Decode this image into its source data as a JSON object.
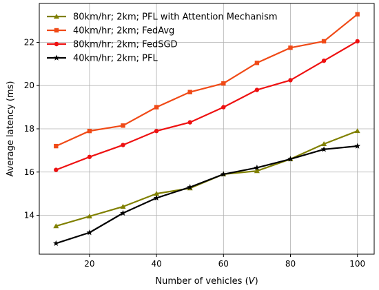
{
  "chart_data": {
    "type": "line",
    "xlabel_prefix": "Number of vehicles (",
    "xlabel_var": "V",
    "xlabel_suffix": ")",
    "ylabel": "Average latency (ms)",
    "xlim": [
      5,
      105
    ],
    "ylim": [
      12.2,
      23.8
    ],
    "xticks": [
      20,
      40,
      60,
      80,
      100
    ],
    "yticks": [
      14,
      16,
      18,
      20,
      22
    ],
    "grid": true,
    "legend_position": "top-left",
    "x": [
      10,
      20,
      30,
      40,
      50,
      60,
      70,
      80,
      90,
      100
    ],
    "series": [
      {
        "name": "80km/hr; 2km; PFL with Attention Mechanism",
        "color": "#808000",
        "marker": "triangle",
        "values": [
          13.5,
          13.95,
          14.4,
          15.0,
          15.25,
          15.9,
          16.05,
          16.6,
          17.3,
          17.9
        ]
      },
      {
        "name": "40km/hr; 2km; FedAvg",
        "color": "#f04a17",
        "marker": "square",
        "values": [
          17.2,
          17.9,
          18.15,
          19.0,
          19.7,
          20.1,
          21.05,
          21.75,
          22.05,
          23.3
        ]
      },
      {
        "name": "80km/hr; 2km; FedSGD",
        "color": "#ee1111",
        "marker": "circle",
        "values": [
          16.1,
          16.7,
          17.25,
          17.9,
          18.3,
          19.0,
          19.8,
          20.25,
          21.15,
          22.05
        ]
      },
      {
        "name": "40km/hr; 2km; PFL",
        "color": "#000000",
        "marker": "star",
        "values": [
          12.7,
          13.2,
          14.1,
          14.8,
          15.3,
          15.9,
          16.2,
          16.6,
          17.05,
          17.2
        ]
      }
    ]
  }
}
